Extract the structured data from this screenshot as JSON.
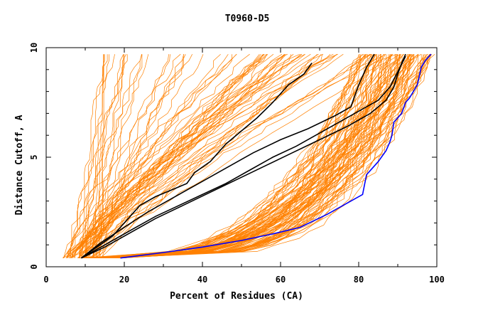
{
  "chart_data": {
    "type": "line",
    "title": "T0960-D5",
    "xlabel": "Percent of Residues (CA)",
    "ylabel": "Distance Cutoff, A",
    "xlim": [
      0,
      100
    ],
    "ylim": [
      0,
      10
    ],
    "xticks": [
      0,
      20,
      40,
      60,
      80,
      100
    ],
    "yticks": [
      0,
      5,
      10
    ],
    "grid": false,
    "legend": "none",
    "colors": {
      "background_models": "#ff8000",
      "highlight_models": "#000000",
      "best_model": "#0000ff"
    },
    "series": [
      {
        "color": "#0000ff",
        "x": [
          19,
          30,
          40,
          50,
          58,
          65,
          72,
          77,
          81,
          82,
          85,
          87,
          88,
          88.5,
          89,
          91,
          92,
          93,
          94,
          95,
          95.5,
          96,
          97,
          98.5
        ],
        "y": [
          0.4,
          0.65,
          0.9,
          1.2,
          1.5,
          1.8,
          2.4,
          2.9,
          3.3,
          4.2,
          4.8,
          5.3,
          5.7,
          6.0,
          6.6,
          7.0,
          7.5,
          7.7,
          8.0,
          8.3,
          8.7,
          9.1,
          9.4,
          9.7
        ]
      },
      {
        "color": "#000000",
        "x": [
          9,
          13,
          17,
          21,
          24,
          28,
          32,
          36,
          38,
          42,
          46,
          50,
          54,
          58,
          62,
          66,
          68
        ],
        "y": [
          0.4,
          0.9,
          1.4,
          2.2,
          2.8,
          3.2,
          3.5,
          3.8,
          4.3,
          4.8,
          5.6,
          6.2,
          6.8,
          7.5,
          8.3,
          8.8,
          9.3
        ]
      },
      {
        "color": "#000000",
        "x": [
          9,
          14,
          20,
          26,
          33,
          40,
          47,
          53,
          60,
          67,
          74,
          78,
          80,
          82,
          84
        ],
        "y": [
          0.4,
          1.1,
          1.8,
          2.5,
          3.2,
          3.9,
          4.6,
          5.2,
          5.8,
          6.3,
          6.9,
          7.3,
          8.3,
          9.1,
          9.7
        ]
      },
      {
        "color": "#000000",
        "x": [
          9,
          15,
          21,
          28,
          35,
          42,
          49,
          56,
          63,
          70,
          77,
          83,
          87,
          89,
          90,
          91,
          92
        ],
        "y": [
          0.4,
          0.9,
          1.5,
          2.2,
          2.8,
          3.4,
          4.0,
          4.6,
          5.2,
          5.8,
          6.4,
          7.0,
          7.6,
          8.2,
          8.8,
          9.3,
          9.7
        ]
      },
      {
        "color": "#000000",
        "x": [
          9,
          13,
          18,
          22,
          28,
          34,
          40,
          46,
          52,
          58,
          64,
          70,
          75,
          80,
          85,
          88,
          90,
          92
        ],
        "y": [
          0.4,
          0.8,
          1.3,
          1.7,
          2.3,
          2.8,
          3.3,
          3.8,
          4.4,
          5.0,
          5.5,
          6.1,
          6.6,
          7.1,
          7.6,
          8.2,
          8.9,
          9.6
        ]
      }
    ]
  }
}
